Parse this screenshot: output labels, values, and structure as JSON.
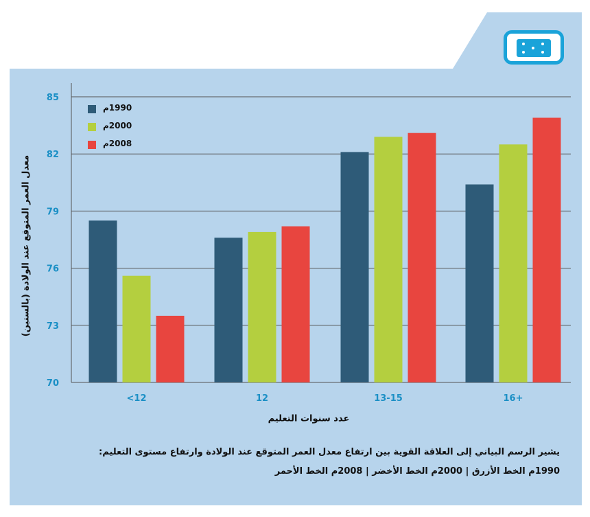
{
  "colors": {
    "page_bg": "#ffffff",
    "panel_bg": "#b7d4ec",
    "grid": "#555555",
    "tick_label": "#1a8fc5",
    "badge": "#1aa3d9"
  },
  "badge_icon": "dice-card-icon",
  "chart_data": {
    "type": "bar",
    "categories": [
      "<12",
      "12",
      "13-15",
      "16+"
    ],
    "series": [
      {
        "name": "1990م",
        "color": "#2e5b78",
        "values": [
          78.5,
          77.6,
          82.1,
          80.4
        ]
      },
      {
        "name": "2000م",
        "color": "#b4cf3f",
        "values": [
          75.6,
          77.9,
          82.9,
          82.5
        ]
      },
      {
        "name": "2008م",
        "color": "#e8453f",
        "values": [
          73.5,
          78.2,
          83.1,
          83.9
        ]
      }
    ],
    "yticks": [
      "70",
      "73",
      "76",
      "79",
      "82",
      "85"
    ],
    "ylim": [
      70,
      85
    ],
    "ylabel": "معدل العمر المتوقع عند الولادة (بالسنين)",
    "xlabel": "عدد سنوات التعليم",
    "grid": "horizontal",
    "legend_position": "top-left"
  },
  "caption": {
    "line1": "يشير الرسم البياني إلى العلاقة القوية بين ارتفاع معدل العمر المتوقع عند الولادة وارتفاع مستوى التعليم:",
    "line2": "1990م الخط الأزرق | 2000م الخط الأخضر | 2008م الخط الأحمر"
  }
}
